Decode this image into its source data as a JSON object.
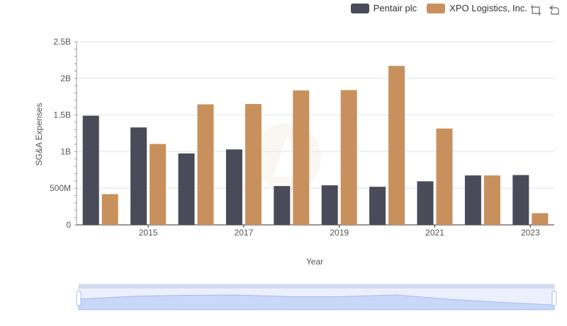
{
  "legend": [
    {
      "name": "Pentair plc",
      "color": "#4a4a58"
    },
    {
      "name": "XPO Logistics, Inc.",
      "color": "#c8905c"
    }
  ],
  "toolbox": {
    "icons": [
      "zoom-select-icon",
      "zoom-reset-icon"
    ]
  },
  "chart_data": {
    "type": "bar",
    "xlabel": "Year",
    "ylabel": "SG&A Expenses",
    "x_tick_labels": [
      "2015",
      "2017",
      "2019",
      "2021",
      "2023"
    ],
    "y_tick_labels": [
      "0",
      "500M",
      "1B",
      "1.5B",
      "2B",
      "2.5B"
    ],
    "ylim": [
      0,
      2500000000
    ],
    "categories": [
      "2014",
      "2015",
      "2016",
      "2017",
      "2018",
      "2019",
      "2020",
      "2021",
      "2022",
      "2023"
    ],
    "series": [
      {
        "name": "Pentair plc",
        "color": "#4a4a58",
        "values": [
          1490000000,
          1330000000,
          975000000,
          1030000000,
          530000000,
          540000000,
          520000000,
          595000000,
          675000000,
          680000000
        ]
      },
      {
        "name": "XPO Logistics, Inc.",
        "color": "#c8905c",
        "values": [
          420000000,
          1105000000,
          1645000000,
          1650000000,
          1835000000,
          1840000000,
          2170000000,
          1315000000,
          675000000,
          160000000
        ]
      }
    ],
    "grid": true,
    "legend_position": "top-right",
    "has_data_zoom_slider": true
  }
}
